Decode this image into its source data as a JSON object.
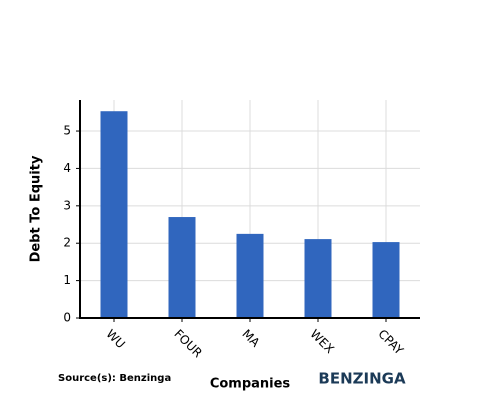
{
  "chart_data": {
    "type": "bar",
    "categories": [
      "WU",
      "FOUR",
      "MA",
      "WEX",
      "CPAY"
    ],
    "values": [
      5.53,
      2.7,
      2.25,
      2.11,
      2.03
    ],
    "color": "#3066be",
    "xlabel": "Companies",
    "ylabel": "Debt To Equity",
    "ylim": [
      0,
      5.83
    ],
    "yticks": [
      0,
      1,
      2,
      3,
      4,
      5
    ],
    "grid": true,
    "source": "Source(s): Benzinga",
    "logo": "BENZINGA"
  }
}
